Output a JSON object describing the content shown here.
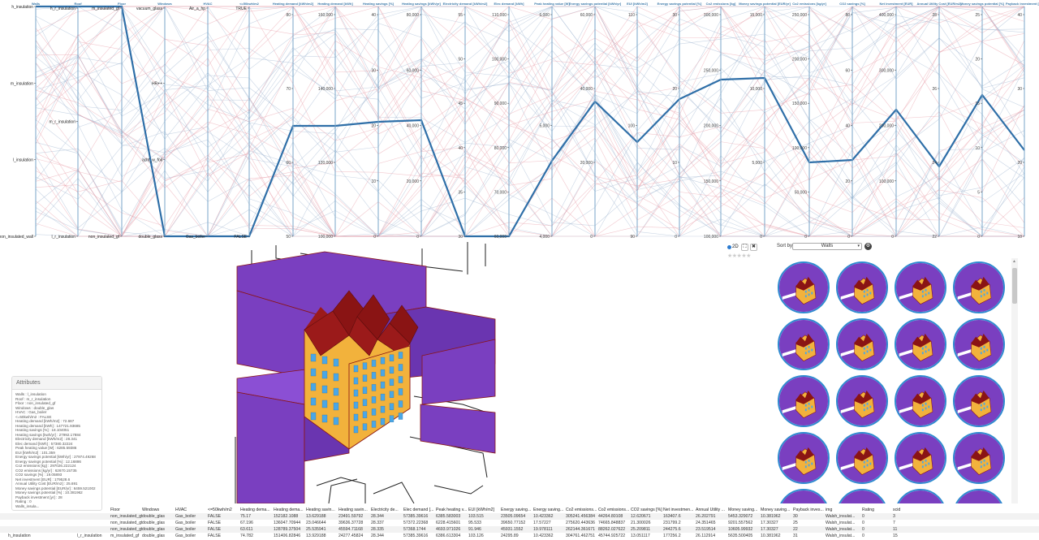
{
  "parallel_coords": {
    "axes": [
      {
        "title": "Walls",
        "ticks": [
          "h_insulation",
          "m_insulation",
          "l_insulation",
          "non_insulated_wall"
        ]
      },
      {
        "title": "Roof",
        "ticks": [
          "h_r_insulation",
          "m_r_insulation",
          "l_r_insulation"
        ]
      },
      {
        "title": "Floor",
        "ticks": [
          "m_insulated_gf",
          "non_insulated_gf"
        ]
      },
      {
        "title": "Windows",
        "ticks": [
          "vacuum_glass",
          "HR++",
          "acht_w_foil",
          "double_glass"
        ]
      },
      {
        "title": "HVAC",
        "ticks": [
          "Air_a_hp",
          "Gas_boiler"
        ]
      },
      {
        "title": "<=50kwh/m2",
        "ticks": [
          "TRUE",
          "FALSE"
        ]
      },
      {
        "title": "Heating demand [kWh/m2]",
        "ticks": [
          "80",
          "70",
          "60",
          "50"
        ]
      },
      {
        "title": "Heating demand [kWh]",
        "ticks": [
          "160,000",
          "140,000",
          "120,000",
          "100,000"
        ]
      },
      {
        "title": "Heating savings [%]",
        "ticks": [
          "40",
          "30",
          "20",
          "10",
          "0"
        ]
      },
      {
        "title": "Heating savings [kWh/yr]",
        "ticks": [
          "80,000",
          "60,000",
          "40,000",
          "20,000",
          "0"
        ]
      },
      {
        "title": "Electricity demand [kWh/m2]",
        "ticks": [
          "55",
          "50",
          "45",
          "40",
          "35",
          "30"
        ]
      },
      {
        "title": "Elec demand [kWh]",
        "ticks": [
          "110,000",
          "100,000",
          "90,000",
          "80,000",
          "70,000",
          "60,000"
        ]
      },
      {
        "title": "Peak heating value [W]",
        "ticks": [
          "6,000",
          "5,000",
          "4,000"
        ]
      },
      {
        "title": "Energy savings potential [kWh/yr]",
        "ticks": [
          "60,000",
          "40,000",
          "20,000",
          "0"
        ]
      },
      {
        "title": "EUI [kWh/m2]",
        "ticks": [
          "110",
          "100",
          "90"
        ]
      },
      {
        "title": "Energy savings potential [%]",
        "ticks": [
          "30",
          "20",
          "10",
          "0"
        ]
      },
      {
        "title": "Co2 emissions [kg]",
        "ticks": [
          "300,000",
          "250,000",
          "200,000",
          "150,000",
          "100,000"
        ]
      },
      {
        "title": "Money savings potential [EUR/yr]",
        "ticks": [
          "15,000",
          "10,000",
          "5,000",
          "0"
        ]
      },
      {
        "title": "Co2 emissions [kg/yr]",
        "ticks": [
          "250,000",
          "200,000",
          "150,000",
          "100,000",
          "50,000",
          "0"
        ]
      },
      {
        "title": "CO2 savings [%]",
        "ticks": [
          "80",
          "60",
          "40",
          "20",
          "0"
        ]
      },
      {
        "title": "Net investment [EUR]",
        "ticks": [
          "400,000",
          "300,000",
          "200,000",
          "100,000",
          "0"
        ]
      },
      {
        "title": "Annual Utility Cost [EUR/m2]",
        "ticks": [
          "28",
          "26",
          "24",
          "22"
        ]
      },
      {
        "title": "Money savings potential [%]",
        "ticks": [
          "25",
          "20",
          "15",
          "10",
          "5",
          "0"
        ]
      },
      {
        "title": "Payback investment [yr]",
        "ticks": [
          "40",
          "30",
          "20",
          "10"
        ]
      }
    ]
  },
  "attributes": {
    "title": "Attributes",
    "lines": [
      "Walls : l_insulation",
      "Roof : m_r_insulation",
      "Floor : non_insulated_gf",
      "Windows : double_glas",
      "HVAC : Gas_boiler",
      "<=50kwh/m2 : FALSE",
      "Heating demand [kWh/m2] : 72.687",
      "Heating demand [kWh] : 147721.93685",
      "Heating savings [%] : 18.104051",
      "Heating savings [kwh/yr] : 27992.17884",
      "Electricity demand [kWh/m2] : 28.341",
      "Elec demand [kWh] : 57380.32224",
      "Peak heating value [W] : 6285.59386",
      "EUI [kWh/m2] : 101.359",
      "Energy savings potential [kWh/yr] : 27974.49268",
      "Energy savings potential [%] : 12.16886",
      "Co2 emissions [kg] : 297026.222124",
      "CO2 emissions [kg/yr] : 62670.15735",
      "CO2 savings [%] : 19.05893",
      "Net investment [EUR] : 179528.6",
      "Annual Utility Cost [EUR/m2] : 25.691",
      "Money savings potential [EUR/yr] : 6459.521002",
      "Money savings potential [%] : 10.381962",
      "Payback investment [yr] : 28",
      "Rating : 0",
      "Walls_insula..."
    ]
  },
  "controls": {
    "label_2d": "2D",
    "expand": "⛶",
    "close": "✖",
    "stars": "★★★★★"
  },
  "sort": {
    "label": "Sort by:",
    "value": "Walls",
    "arrow": "▾"
  },
  "table": {
    "headers": [
      "",
      "Floor",
      "Windows",
      "HVAC",
      "<=50kwh/m2",
      "Heating dema...",
      "Heating dema...",
      "Heating savin...",
      "Heating savin...",
      "Electricity de...",
      "Elec demand [...",
      "Peak heating v...",
      "EUI [kWh/m2]",
      "Energy saving...",
      "Energy saving...",
      "Co2 emissions...",
      "Co2 emissions...",
      "CO2 savings [%]",
      "Net investmen...",
      "Annual Utility ...",
      "Money saving...",
      "Money saving...",
      "Payback inves...",
      "img",
      "Rating",
      "scid"
    ],
    "rows": [
      [
        "",
        "non_insulated_gf",
        "double_glas",
        "Gas_boiler",
        "FALSE",
        "75.17",
        "152182.1088",
        "13.629188",
        "23491.59792",
        "28.344",
        "57385.39616",
        "6385.583003",
        "103.515",
        "23505.09654",
        "10.423362",
        "305241.456384",
        "44264.80108",
        "12.620671",
        "163407.6",
        "26.202791",
        "5453.329072",
        "10.381962",
        "30",
        "Walsh_insulat...",
        "0",
        "3"
      ],
      [
        "",
        "non_insulated_gf",
        "double_glas",
        "Gas_boiler",
        "FALSE",
        "67.196",
        "136047.70944",
        "23.046644",
        "39636.37728",
        "28.337",
        "57372.22368",
        "6228.415601",
        "95.533",
        "39650.77152",
        "17.57227",
        "275620.443636",
        "74665.848837",
        "21.300026",
        "231799.2",
        "24.351465",
        "9201.557562",
        "17.30327",
        "25",
        "Walsh_insulat...",
        "0",
        "7"
      ],
      [
        "",
        "non_insulated_gf",
        "double_glas",
        "Gas_boiler",
        "FALSE",
        "63.611",
        "128789.37504",
        "25.535941",
        "45594.71168",
        "28.335",
        "57368.1744",
        "4693.971026",
        "91.946",
        "45931.1552",
        "19.978111",
        "262144.361671",
        "88262.027622",
        "25.209811",
        "244275.6",
        "23.519514",
        "10605.99932",
        "17.30327",
        "22",
        "Walsh_insulat...",
        "0",
        "11"
      ],
      [
        "h_insulation",
        "m_insulated_gf",
        "double_glas",
        "Gas_boiler",
        "FALSE",
        "74.782",
        "151406.82846",
        "13.929188",
        "24277.45824",
        "28.344",
        "57385.39616",
        "6386.613304",
        "103.126",
        "24295.89",
        "10.423362",
        "304761.462751",
        "45744.925722",
        "13.051117",
        "177256.2",
        "26.112914",
        "5635.500405",
        "10.381962",
        "31",
        "Walsh_insulat...",
        "0",
        "15"
      ]
    ],
    "row_roof": [
      "",
      "",
      "",
      "l_r_insulation"
    ]
  },
  "colors": {
    "selected": "#2f6fa8",
    "blue_lines": "#9fb4cf",
    "red_lines": "#e89aa6",
    "axis": "#7aa6c8",
    "facade": "#f2b23c",
    "roof": "#8a1414",
    "purple": "#7a3fc0",
    "window": "#4aa7e6"
  }
}
